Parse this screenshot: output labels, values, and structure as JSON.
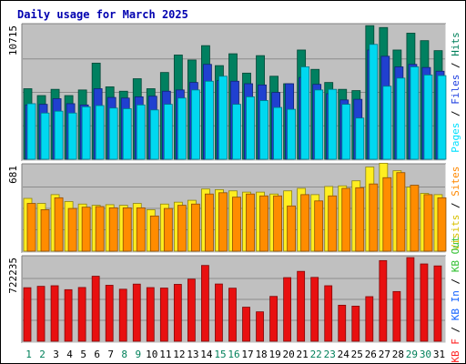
{
  "chart_data": {
    "type": "bar",
    "title": "Daily usage for March 2025",
    "days": [
      "1",
      "2",
      "3",
      "4",
      "5",
      "6",
      "7",
      "8",
      "9",
      "10",
      "11",
      "12",
      "13",
      "14",
      "15",
      "16",
      "17",
      "18",
      "19",
      "20",
      "21",
      "22",
      "23",
      "24",
      "25",
      "26",
      "27",
      "28",
      "29",
      "30",
      "31"
    ],
    "weekend_days": [
      "1",
      "2",
      "8",
      "9",
      "15",
      "16",
      "22",
      "23",
      "29",
      "30"
    ],
    "panels": [
      {
        "id": "hits",
        "max_label": "10715",
        "ylim": [
          0,
          10715
        ],
        "legend": [
          "Pages",
          "Files",
          "Hits"
        ],
        "legend_colors": [
          "#00e0ff",
          "#2040e0",
          "#00805a"
        ],
        "series": [
          {
            "name": "Hits",
            "color": "#008060",
            "values": [
              5650,
              5100,
              5600,
              5100,
              5550,
              7700,
              5800,
              5450,
              6450,
              5650,
              6950,
              8350,
              7950,
              9100,
              7500,
              8450,
              6900,
              8300,
              6650,
              6050,
              8750,
              7200,
              6150,
              5600,
              5500,
              10700,
              10550,
              8750,
              10100,
              9500,
              8700
            ]
          },
          {
            "name": "Files",
            "color": "#2040d0",
            "values": [
              4350,
              4400,
              4850,
              4450,
              4350,
              5650,
              4950,
              4900,
              5000,
              5050,
              5450,
              5550,
              6150,
              7600,
              6300,
              6250,
              6050,
              5950,
              5350,
              6050,
              6550,
              6000,
              5250,
              4750,
              4800,
              8750,
              8250,
              7400,
              7600,
              7350,
              7050
            ]
          },
          {
            "name": "Pages",
            "color": "#00d8f0",
            "values": [
              4450,
              3700,
              3850,
              3700,
              4200,
              4300,
              4100,
              4050,
              4350,
              3950,
              4400,
              4900,
              5550,
              6250,
              6650,
              4400,
              5000,
              4700,
              4150,
              4000,
              7400,
              5550,
              5600,
              4400,
              3300,
              9200,
              5850,
              6500,
              7400,
              6750,
              6700
            ]
          }
        ]
      },
      {
        "id": "visits",
        "max_label": "681",
        "ylim": [
          0,
          681
        ],
        "legend": [
          "Visits",
          "Sites"
        ],
        "legend_colors": [
          "#d8c000",
          "#ff8800"
        ],
        "series": [
          {
            "name": "Visits",
            "color": "#ffee20",
            "values": [
              420,
              380,
              450,
              395,
              375,
              365,
              370,
              365,
              380,
              330,
              375,
              390,
              405,
              495,
              490,
              480,
              470,
              470,
              455,
              480,
              500,
              450,
              515,
              520,
              560,
              670,
              700,
              640,
              510,
              460,
              450
            ]
          },
          {
            "name": "Sites",
            "color": "#ff8c00",
            "values": [
              380,
              330,
              425,
              340,
              350,
              355,
              345,
              345,
              345,
              280,
              340,
              365,
              375,
              455,
              465,
              430,
              455,
              440,
              440,
              360,
              450,
              400,
              440,
              500,
              505,
              535,
              585,
              625,
              525,
              450,
              425
            ]
          }
        ]
      },
      {
        "id": "kbytes",
        "max_label": "722235",
        "ylim": [
          0,
          722235
        ],
        "legend": [
          "KB F",
          "KB In",
          "KB Out"
        ],
        "legend_colors": [
          "#ff2020",
          "#1060ff",
          "#30c030"
        ],
        "series": [
          {
            "name": "KB F",
            "color": "#e81010",
            "values": [
              462000,
              474000,
              479000,
              445000,
              464000,
              561000,
              483000,
              449000,
              493000,
              463000,
              459000,
              491000,
              536000,
              654000,
              494000,
              458000,
              294000,
              254000,
              387000,
              549000,
              603000,
              551000,
              479000,
              311000,
              303000,
              385000,
              696000,
              429000,
              722000,
              667000,
              650000
            ]
          }
        ]
      }
    ]
  }
}
